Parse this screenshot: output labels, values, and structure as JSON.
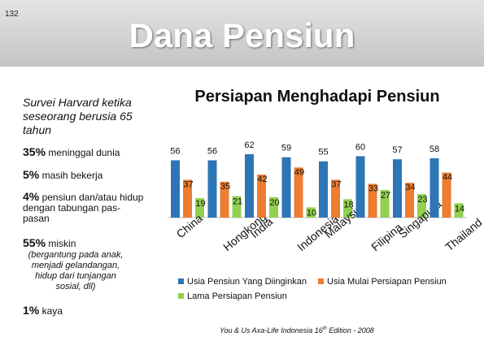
{
  "slide": {
    "number": "132",
    "title": "Dana Pensiun"
  },
  "survey": {
    "title": "Survei Harvard ketika seseorang berusia 65 tahun",
    "stats": [
      {
        "percent": "35%",
        "text": "meninggal dunia",
        "note": ""
      },
      {
        "percent": "5%",
        "text": "masih bekerja",
        "note": ""
      },
      {
        "percent": "4%",
        "text": "pensiun dan/atau hidup dengan tabungan pas-pasan",
        "note": ""
      },
      {
        "percent": "55%",
        "text": "miskin",
        "note": "(bergantung pada anak, menjadi gelandangan, hidup dari tunjangan sosial, dll)"
      },
      {
        "percent": "1%",
        "text": "kaya",
        "note": ""
      }
    ]
  },
  "chart_data": {
    "type": "bar",
    "title": "Persiapan Menghadapi Pensiun",
    "categories": [
      "China",
      "Hongkong",
      "India",
      "Indonesia",
      "Malaysia",
      "Filipina",
      "Singapura",
      "Thailand"
    ],
    "series": [
      {
        "name": "Usia Pensiun Yang Diinginkan",
        "color": "#2e75b6",
        "values": [
          56,
          56,
          62,
          59,
          55,
          60,
          57,
          58
        ]
      },
      {
        "name": "Usia Mulai Persiapan Pensiun",
        "color": "#ed7d31",
        "values": [
          37,
          35,
          42,
          49,
          37,
          33,
          34,
          44
        ]
      },
      {
        "name": "Lama Persiapan Pensiun",
        "color": "#92d050",
        "values": [
          19,
          21,
          20,
          10,
          18,
          27,
          23,
          14
        ]
      }
    ],
    "legend_position": "bottom",
    "grid": false
  },
  "source": {
    "text_before": "You & Us Axa-Life Indonesia 16",
    "superscript": "th",
    "text_after": " Edition - 2008"
  }
}
